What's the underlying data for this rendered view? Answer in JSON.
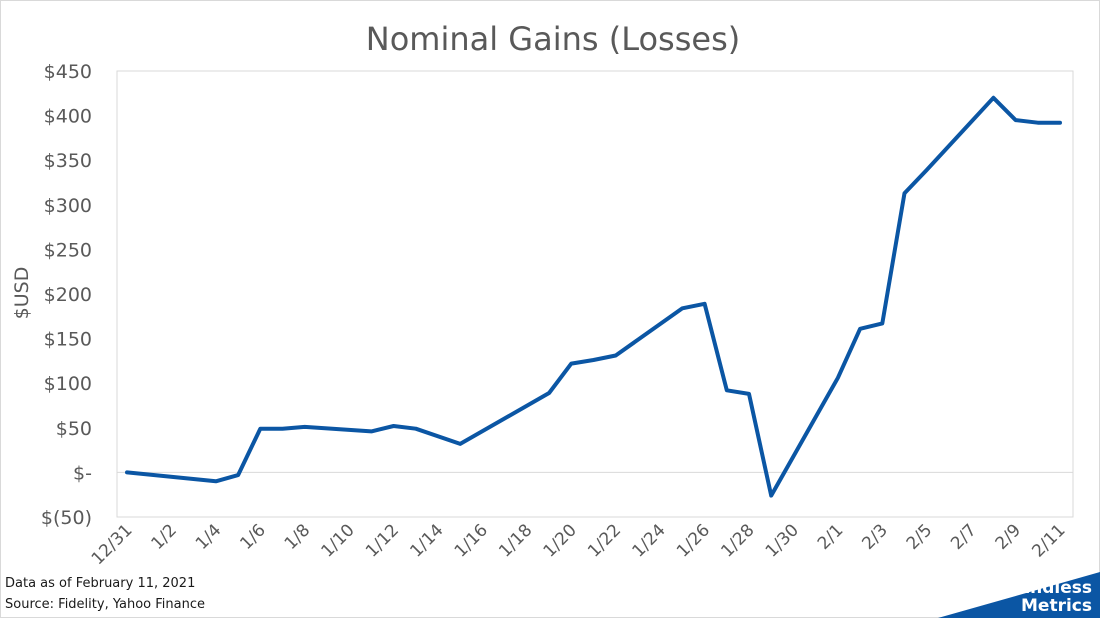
{
  "chart_data": {
    "type": "line",
    "title": "Nominal Gains (Losses)",
    "ylabel": "$USD",
    "xlabel": "",
    "ylim": [
      -50,
      450
    ],
    "y_ticks": [
      450,
      400,
      350,
      300,
      250,
      200,
      150,
      100,
      50,
      0,
      -50
    ],
    "y_tick_labels": [
      "$450",
      "$400",
      "$350",
      "$300",
      "$250",
      "$200",
      "$150",
      "$100",
      "$50",
      "$-",
      "$(50)"
    ],
    "x_tick_labels": [
      "12/31",
      "1/2",
      "1/4",
      "1/6",
      "1/8",
      "1/10",
      "1/12",
      "1/14",
      "1/16",
      "1/18",
      "1/20",
      "1/22",
      "1/24",
      "1/26",
      "1/28",
      "1/30",
      "2/1",
      "2/3",
      "2/5",
      "2/7",
      "2/9",
      "2/11"
    ],
    "grid": false,
    "color": "#0b56a4",
    "series": [
      {
        "x": [
          "12/31",
          "1/4",
          "1/5",
          "1/6",
          "1/7",
          "1/8",
          "1/11",
          "1/12",
          "1/13",
          "1/15",
          "1/19",
          "1/20",
          "1/21",
          "1/22",
          "1/25",
          "1/26",
          "1/27",
          "1/28",
          "1/29",
          "2/1",
          "2/2",
          "2/3",
          "2/4",
          "2/5",
          "2/8",
          "2/9",
          "2/10",
          "2/11"
        ],
        "values": [
          0,
          -10,
          -3,
          49,
          49,
          51,
          46,
          52,
          49,
          32,
          89,
          122,
          126,
          131,
          184,
          189,
          92,
          88,
          -26,
          106,
          161,
          167,
          313,
          339,
          420,
          395,
          392,
          392
        ]
      }
    ]
  },
  "footer": {
    "note_date": "Data as of February 11, 2021",
    "note_source": "Source: Fidelity, Yahoo Finance"
  },
  "brand": {
    "line1": "Endless",
    "line2": "Metrics",
    "color": "#0b56a4"
  }
}
